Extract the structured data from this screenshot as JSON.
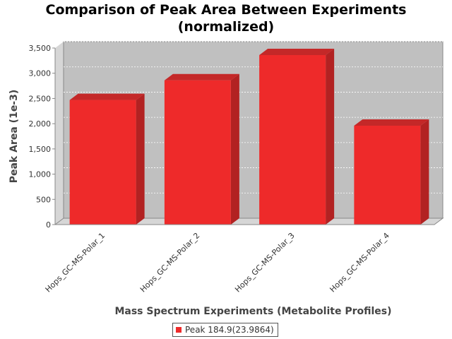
{
  "chart_data": {
    "type": "bar",
    "title_lines": [
      "Comparison of Peak Area Between Experiments",
      "(normalized)"
    ],
    "xlabel": "Mass Spectrum Experiments (Metabolite Profiles)",
    "ylabel": "Peak Area (1e-3)",
    "categories": [
      "Hops_GC-MS-Polar_1",
      "Hops_GC-MS-Polar_2",
      "Hops_GC-MS-Polar_3",
      "Hops_GC-MS-Polar_4"
    ],
    "series": [
      {
        "name": "Peak 184.9(23.9864)",
        "values": [
          2470,
          2860,
          3360,
          1960
        ],
        "color": "#ee2a2a"
      }
    ],
    "yticks": [
      "0",
      "500",
      "1,000",
      "1,500",
      "2,000",
      "2,500",
      "3,000",
      "3,500"
    ],
    "ylim": [
      0,
      3500
    ],
    "grid": true,
    "legend_position": "bottom",
    "plot_background": "#c0c0c0"
  }
}
